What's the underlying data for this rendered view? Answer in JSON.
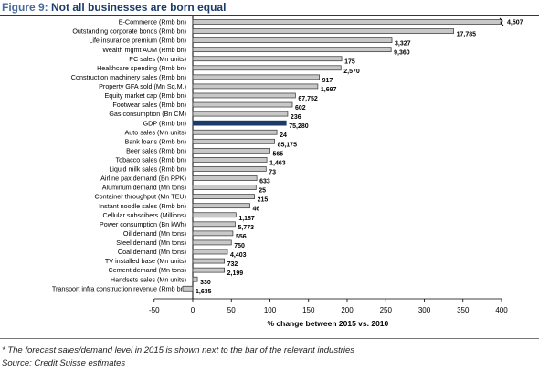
{
  "header": {
    "figure_label": "Figure 9: ",
    "title": "Not all businesses are born equal"
  },
  "notes": {
    "footnote": "* The forecast sales/demand level in 2015 is shown next to the bar of the relevant industries",
    "source": "Source: Credit Suisse estimates"
  },
  "colors": {
    "bar_fill": "#c8c8c8",
    "bar_stroke": "#333333",
    "highlight": "#1b3a6b",
    "highlight_text": "#1b3a6b"
  },
  "chart_data": {
    "type": "bar",
    "orientation": "horizontal",
    "xlabel": "% change between 2015 vs. 2010",
    "xlim": [
      -50,
      400
    ],
    "xticks": [
      -50,
      0,
      50,
      100,
      150,
      200,
      250,
      300,
      350,
      400
    ],
    "highlight_category": "GDP (Rmb bn)",
    "axis_break_on": "E-Commerce (Rmb bn)",
    "categories": [
      "E-Commerce (Rmb bn)",
      "Outstanding corporate bonds (Rmb bn)",
      "Life insurance premium (Rmb bn)",
      "Wealth mgmt AUM (Rmb bn)",
      "PC sales (Mn units)",
      "Healthcare spending (Rmb bn)",
      "Construction machinery sales (Rmb bn)",
      "Property GFA sold (Mn Sq.M.)",
      "Equity market cap (Rmb bn)",
      "Footwear sales (Rmb bn)",
      "Gas consumption (Bn CM)",
      "GDP (Rmb bn)",
      "Auto sales (Mn units)",
      "Bank loans (Rmb bn)",
      "Beer sales (Rmb bn)",
      "Tobacco sales (Rmb bn)",
      "Liquid milk sales (Rmb bn)",
      "Airline pax demand  (Bn RPK)",
      "Aluminum demand (Mn tons)",
      "Container throughput (Mn TEU)",
      "Instant noodle sales (Rmb bn)",
      "Cellular subscibers (Millions)",
      "Power consumption  (Bn kWh)",
      "Oil demand (Mn tons)",
      "Steel demand (Mn tons)",
      "Coal demand (Mn tons)",
      "TV installed base (Mn units)",
      "Cement demand (Mn tons)",
      "Handsets sales (Mn units)",
      "Transport infra construction revenue (Rmb bn)"
    ],
    "values": [
      400,
      338,
      258,
      257,
      193,
      192,
      164,
      162,
      133,
      129,
      123,
      121,
      109,
      106,
      100,
      96,
      95,
      83,
      82,
      80,
      74,
      56,
      55,
      52,
      50,
      45,
      41,
      41,
      6,
      -13
    ],
    "data_labels": [
      "4,507",
      "17,785",
      "3,327",
      "9,360",
      "175",
      "2,570",
      "917",
      "1,697",
      "67,752",
      "602",
      "236",
      "75,280",
      "24",
      "85,175",
      "565",
      "1,463",
      "73",
      "633",
      "25",
      "215",
      "46",
      "1,187",
      "5,773",
      "556",
      "750",
      "4,403",
      "732",
      "2,199",
      "330",
      "1,635"
    ]
  }
}
